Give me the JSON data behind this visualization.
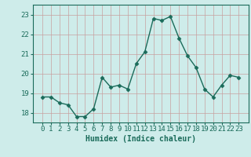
{
  "x": [
    0,
    1,
    2,
    3,
    4,
    5,
    6,
    7,
    8,
    9,
    10,
    11,
    12,
    13,
    14,
    15,
    16,
    17,
    18,
    19,
    20,
    21,
    22,
    23
  ],
  "y": [
    18.8,
    18.8,
    18.5,
    18.4,
    17.8,
    17.8,
    18.2,
    19.8,
    19.3,
    19.4,
    19.2,
    20.5,
    21.1,
    22.8,
    22.7,
    22.9,
    21.8,
    20.9,
    20.3,
    19.2,
    18.8,
    19.4,
    19.9,
    19.8
  ],
  "line_color": "#1a6b5a",
  "marker": "D",
  "marker_size": 2.5,
  "bg_color": "#ceecea",
  "grid_color": "#c8a0a0",
  "xlabel": "Humidex (Indice chaleur)",
  "xlabel_fontsize": 7,
  "tick_fontsize": 6.5,
  "ylim": [
    17.5,
    23.5
  ],
  "yticks": [
    18,
    19,
    20,
    21,
    22,
    23
  ],
  "xticks": [
    0,
    1,
    2,
    3,
    4,
    5,
    6,
    7,
    8,
    9,
    10,
    11,
    12,
    13,
    14,
    15,
    16,
    17,
    18,
    19,
    20,
    21,
    22,
    23
  ],
  "line_width": 1.0,
  "spine_color": "#1a6b5a"
}
